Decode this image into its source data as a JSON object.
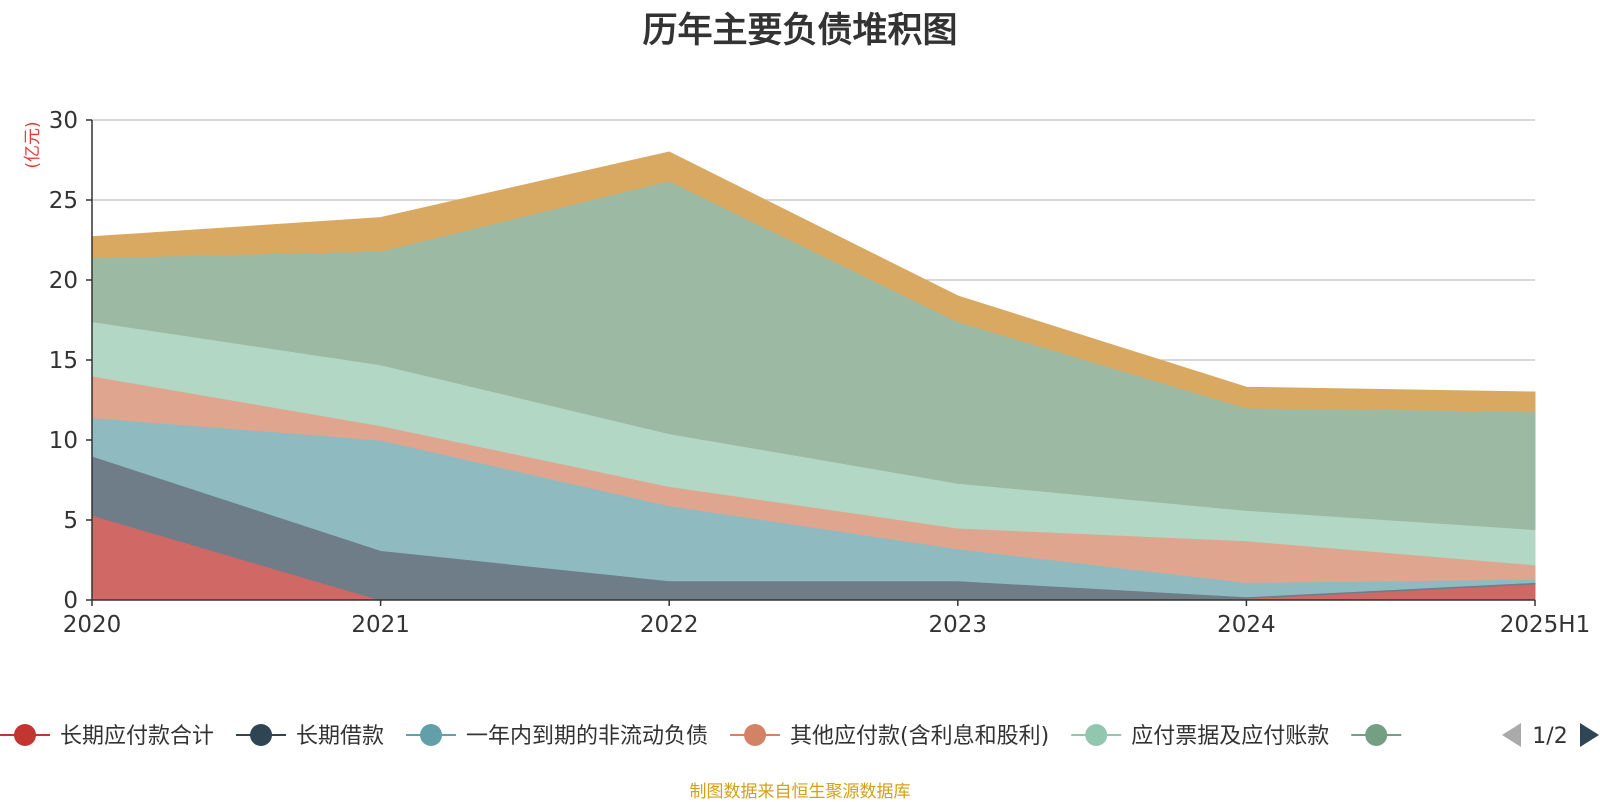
{
  "chart_data": {
    "type": "area",
    "title": "历年主要负债堆积图",
    "y_unit": "(亿元)",
    "categories": [
      "2020",
      "2021",
      "2022",
      "2023",
      "2024",
      "2025H1"
    ],
    "ylim": [
      0,
      30
    ],
    "yticks": [
      0,
      5,
      10,
      15,
      20,
      25,
      30
    ],
    "grid": true,
    "stacked": true,
    "series": [
      {
        "name": "长期应付款合计",
        "color": "#d06866",
        "values": [
          5.3,
          0.0,
          0.0,
          0.0,
          0.1,
          1.0
        ]
      },
      {
        "name": "长期借款",
        "color": "#6f7d88",
        "values": [
          3.7,
          3.1,
          1.2,
          1.2,
          0.1,
          0.1
        ]
      },
      {
        "name": "一年内到期的非流动负债",
        "color": "#8fbbc0",
        "values": [
          2.4,
          6.9,
          4.7,
          2.0,
          0.9,
          0.2
        ]
      },
      {
        "name": "其他应付款(含利息和股利)",
        "color": "#e0a58f",
        "values": [
          2.6,
          0.9,
          1.2,
          1.3,
          2.6,
          0.9
        ]
      },
      {
        "name": "应付票据及应付账款",
        "color": "#b2d8c5",
        "values": [
          3.4,
          3.8,
          3.3,
          2.8,
          1.9,
          2.2
        ]
      },
      {
        "name": "",
        "color": "#9cb9a4",
        "values": [
          4.0,
          7.1,
          15.8,
          10.1,
          6.4,
          7.4
        ]
      },
      {
        "name": "",
        "color": "#daa961",
        "values": [
          1.3,
          2.1,
          1.8,
          1.6,
          1.3,
          1.2
        ]
      }
    ],
    "legend": {
      "placement": "bottom",
      "page": "1/2",
      "items": [
        {
          "label": "长期应付款合计",
          "color": "#c23531"
        },
        {
          "label": "长期借款",
          "color": "#2f4554"
        },
        {
          "label": "一年内到期的非流动负债",
          "color": "#61a0a8"
        },
        {
          "label": "其他应付款(含利息和股利)",
          "color": "#d48265"
        },
        {
          "label": "应付票据及应付账款",
          "color": "#91c7ae"
        },
        {
          "label": "",
          "color": "#749f83"
        }
      ]
    }
  },
  "source_note": "制图数据来自恒生聚源数据库"
}
